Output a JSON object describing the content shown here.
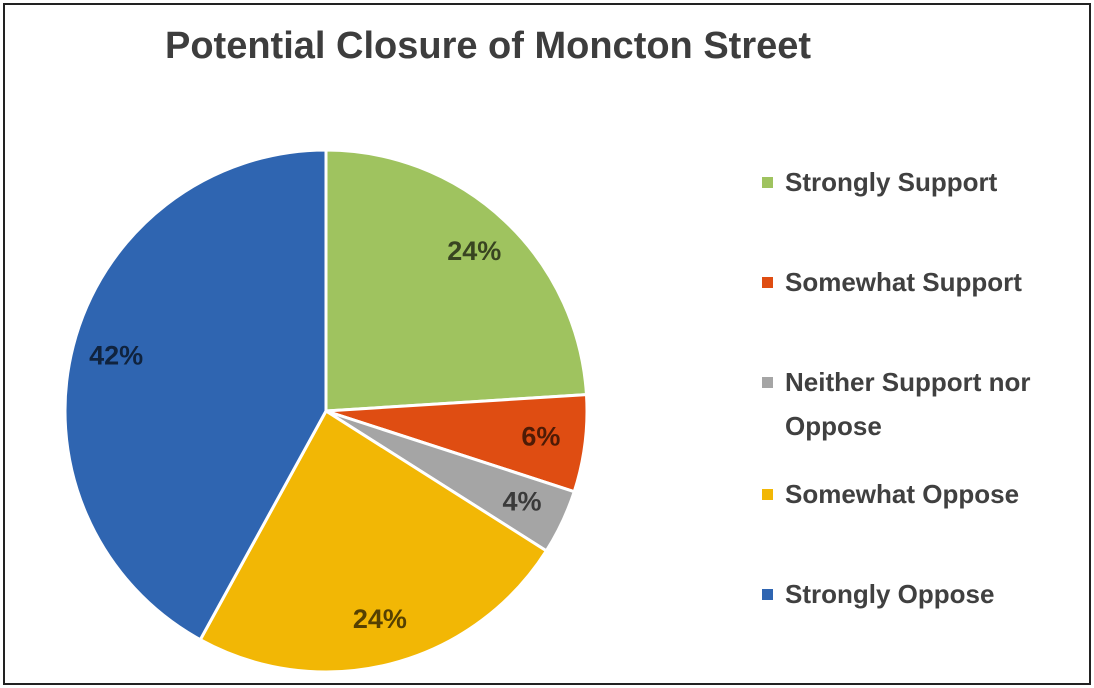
{
  "chart_data": {
    "type": "pie",
    "title": "Potential Closure of Moncton Street",
    "categories": [
      "Strongly Support",
      "Somewhat Support",
      "Neither Support nor Oppose",
      "Somewhat Oppose",
      "Strongly Oppose"
    ],
    "values": [
      24,
      6,
      4,
      24,
      42
    ],
    "value_labels": [
      "24%",
      "6%",
      "4%",
      "24%",
      "42%"
    ],
    "colors": [
      "#9fc35f",
      "#df4d12",
      "#a5a5a5",
      "#f2b705",
      "#2f65b1"
    ],
    "legend": "right"
  }
}
